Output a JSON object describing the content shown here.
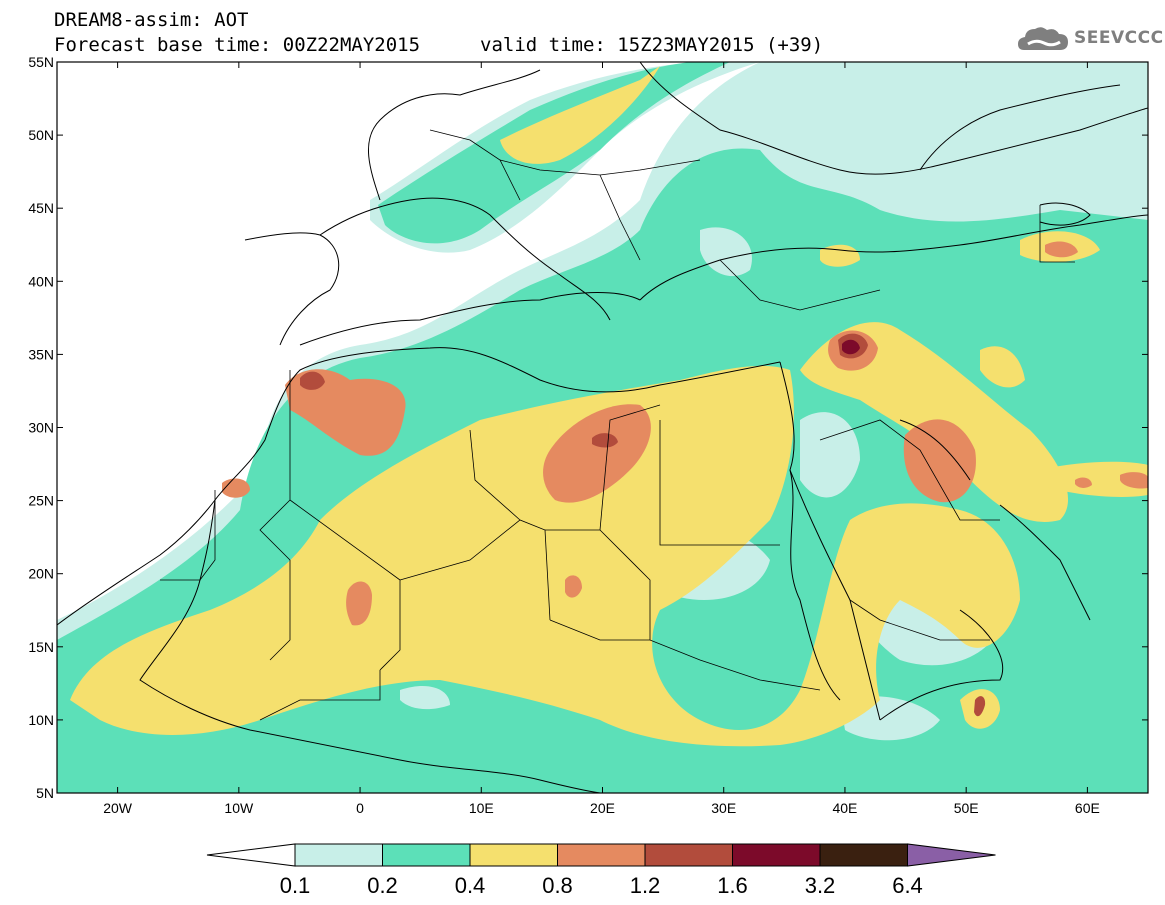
{
  "header": {
    "title": "DREAM8-assim: AOT",
    "base_time": "Forecast base time: 00Z22MAY2015",
    "valid_time": "valid time: 15Z23MAY2015 (+39)"
  },
  "logo": {
    "text": "SEEVCCC",
    "icon": "cloud-icon"
  },
  "map": {
    "lat_labels": [
      "55N",
      "50N",
      "45N",
      "40N",
      "35N",
      "30N",
      "25N",
      "20N",
      "15N",
      "10N",
      "5N"
    ],
    "lon_labels": [
      "20W",
      "10W",
      "0",
      "10E",
      "20E",
      "30E",
      "40E",
      "50E",
      "60E"
    ],
    "lon_range": [
      -25,
      65
    ],
    "lat_range": [
      5,
      55
    ]
  },
  "legend": {
    "labels": [
      "0.1",
      "0.2",
      "0.4",
      "0.8",
      "1.2",
      "1.6",
      "3.2",
      "6.4"
    ],
    "colors": [
      "#ffffff",
      "#c8efe8",
      "#5ce0b8",
      "#f5e06e",
      "#e58a60",
      "#b24c3c",
      "#7c0a2a",
      "#3a2010",
      "#8a5fa6"
    ]
  }
}
